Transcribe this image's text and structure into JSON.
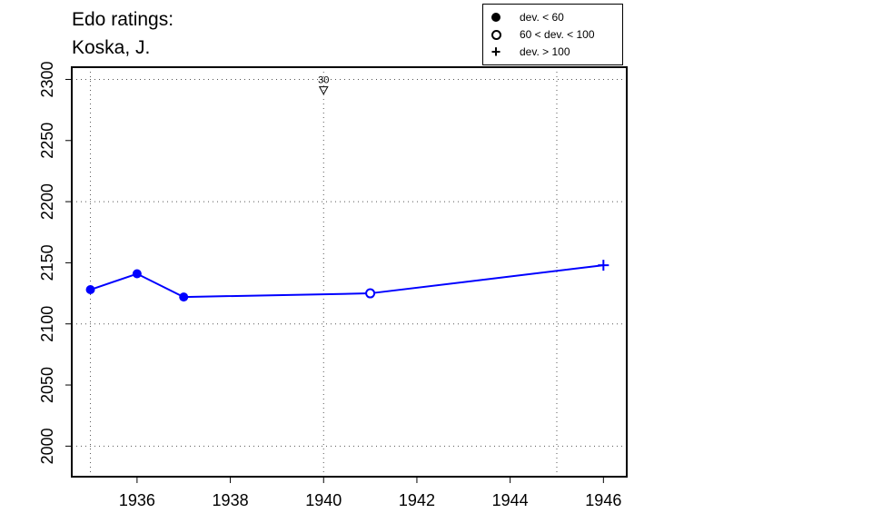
{
  "title": {
    "line1": "Edo ratings:",
    "line2": "Koska, J."
  },
  "legend": {
    "entries": [
      {
        "symbol": "filled-circle",
        "label": "dev. < 60"
      },
      {
        "symbol": "open-circle",
        "label": "60 < dev. < 100"
      },
      {
        "symbol": "plus",
        "label": "dev. > 100"
      }
    ]
  },
  "colors": {
    "series": "#0000ff",
    "axis": "#000000",
    "grid": "#555555"
  },
  "chart_data": {
    "type": "line",
    "xlim": [
      1934.6,
      1946.5
    ],
    "ylim": [
      1975,
      2310
    ],
    "xticks": [
      1936,
      1938,
      1940,
      1942,
      1944,
      1946
    ],
    "yticks": [
      2000,
      2050,
      2100,
      2150,
      2200,
      2250,
      2300
    ],
    "grid_x": [
      1935,
      1940,
      1945
    ],
    "grid_y": [
      2000,
      2100,
      2200,
      2300
    ],
    "grid": true,
    "legend_position": "top-right",
    "series": [
      {
        "points": [
          {
            "x": 1935,
            "y": 2128,
            "dev": "low"
          },
          {
            "x": 1936,
            "y": 2141,
            "dev": "low"
          },
          {
            "x": 1937,
            "y": 2122,
            "dev": "low"
          },
          {
            "x": 1941,
            "y": 2125,
            "dev": "mid"
          },
          {
            "x": 1946,
            "y": 2148,
            "dev": "high"
          }
        ]
      }
    ],
    "annotations": [
      {
        "x": 1940,
        "y": 2291,
        "symbol": "down-triangle",
        "label": "30"
      }
    ]
  }
}
